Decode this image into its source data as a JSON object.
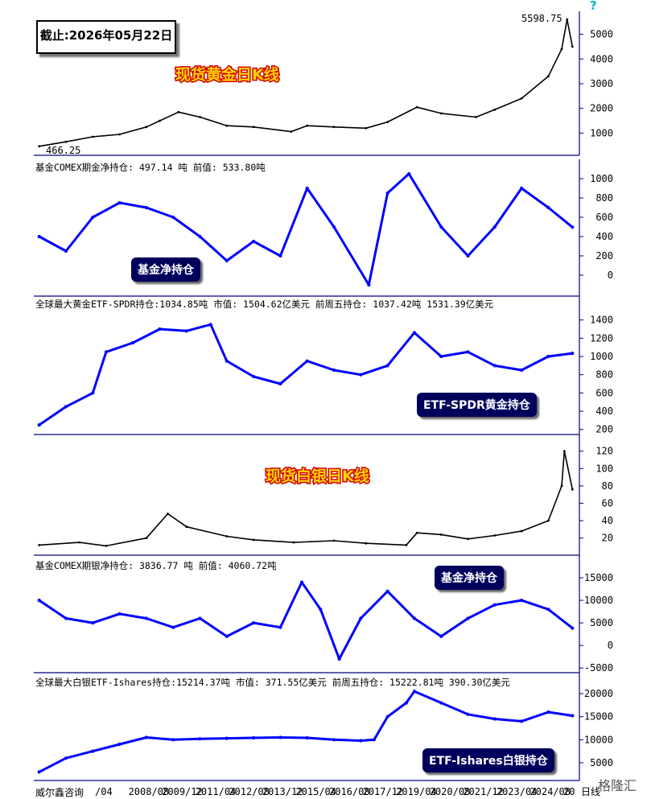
{
  "header": {
    "date_label": "截止:2026年05月22日",
    "help_icon": "question-icon"
  },
  "panels": {
    "gold_k": {
      "title": "现货黄金日K线",
      "max_label": "5598.75",
      "min_label": "466.25"
    },
    "gold_comex": {
      "info": "基金COMEX期金净持仓: 497.14 吨    前值: 533.80吨",
      "badge": "基金净持仓"
    },
    "gold_etf": {
      "info": "全球最大黄金ETF-SPDR持仓:1034.85吨    市值: 1504.62亿美元          前周五持仓: 1037.42吨   1531.39亿美元",
      "badge": "ETF-SPDR黄金持仓"
    },
    "silver_k": {
      "title": "现货白银日K线"
    },
    "silver_comex": {
      "info": "基金COMEX期银净持仓: 3836.77 吨    前值: 4060.72吨",
      "badge": "基金净持仓"
    },
    "silver_etf": {
      "info": "全球最大白银ETF-Ishares持仓:15214.37吨    市值: 371.55亿美元    前周五持仓: 15222.81吨    390.30亿美元",
      "badge": "ETF-Ishares白银持仓"
    }
  },
  "footer": {
    "source": "威尔鑫咨询",
    "x_ticks": [
      "/04",
      "2008/08",
      "2009/12",
      "2011/04",
      "2012/08",
      "2013/12",
      "2015/04",
      "2016/08",
      "2017/12",
      "2019/04",
      "2020/08",
      "2021/12",
      "2023/04",
      "2024/08",
      "20"
    ],
    "last_tick": "日线",
    "watermark": "格隆汇"
  },
  "colors": {
    "price_line": "#000000",
    "holding_line": "#0000ff",
    "badge_bg": "#00005c",
    "title_fill": "#ffd400",
    "title_stroke": "#d40000"
  },
  "chart_data": [
    {
      "type": "line",
      "name": "gold_spot_daily",
      "title": "现货黄金日K线",
      "x": [
        2006.5,
        2007.5,
        2008.5,
        2009.5,
        2010.5,
        2011.0,
        2011.7,
        2012.5,
        2013.5,
        2014.5,
        2015.9,
        2016.5,
        2017.5,
        2018.7,
        2019.5,
        2020.6,
        2021.5,
        2022.8,
        2023.5,
        2024.5,
        2025.5,
        2026.0,
        2026.2,
        2026.4
      ],
      "y": [
        466.25,
        650,
        850,
        950,
        1250,
        1500,
        1850,
        1650,
        1300,
        1250,
        1060,
        1300,
        1250,
        1200,
        1450,
        2050,
        1800,
        1650,
        1950,
        2400,
        3300,
        4400,
        5598.75,
        4500
      ],
      "yticks": [
        1000,
        2000,
        3000,
        4000,
        5000
      ],
      "ylim": [
        200,
        5800
      ]
    },
    {
      "type": "line",
      "name": "comex_gold_fund_net",
      "x": [
        2006.5,
        2007.5,
        2008.5,
        2009.5,
        2010.5,
        2011.5,
        2012.5,
        2013.5,
        2014.5,
        2015.5,
        2016.5,
        2017.5,
        2018.8,
        2019.5,
        2020.3,
        2021.5,
        2022.5,
        2023.5,
        2024.5,
        2025.5,
        2026.4
      ],
      "y": [
        400,
        250,
        600,
        750,
        700,
        600,
        400,
        150,
        350,
        200,
        900,
        500,
        -100,
        850,
        1050,
        500,
        200,
        500,
        900,
        700,
        497.14
      ],
      "yticks": [
        0,
        200,
        400,
        600,
        800,
        1000
      ],
      "ylim": [
        -150,
        1100
      ]
    },
    {
      "type": "line",
      "name": "spdr_gold_etf",
      "x": [
        2006.5,
        2007.5,
        2008.5,
        2009.0,
        2010.0,
        2011.0,
        2012.0,
        2012.9,
        2013.5,
        2014.5,
        2015.5,
        2016.5,
        2017.5,
        2018.5,
        2019.5,
        2020.5,
        2021.5,
        2022.5,
        2023.5,
        2024.5,
        2025.5,
        2026.4
      ],
      "y": [
        250,
        450,
        600,
        1050,
        1150,
        1300,
        1280,
        1350,
        950,
        780,
        700,
        950,
        850,
        800,
        900,
        1260,
        1000,
        1050,
        900,
        850,
        1000,
        1034.85
      ],
      "yticks": [
        200,
        400,
        600,
        800,
        1000,
        1200,
        1400
      ],
      "ylim": [
        180,
        1450
      ]
    },
    {
      "type": "line",
      "name": "silver_spot_daily",
      "title": "现货白银日K线",
      "x": [
        2006.5,
        2008.0,
        2009.0,
        2010.5,
        2011.3,
        2012.0,
        2013.5,
        2014.5,
        2016.0,
        2017.5,
        2018.7,
        2020.2,
        2020.6,
        2021.5,
        2022.5,
        2023.5,
        2024.5,
        2025.5,
        2026.0,
        2026.1,
        2026.4
      ],
      "y": [
        12,
        15,
        11,
        20,
        48,
        33,
        22,
        18,
        15,
        17,
        14,
        12,
        26,
        24,
        19,
        23,
        28,
        40,
        80,
        120,
        76
      ],
      "yticks": [
        20,
        40,
        60,
        80,
        100,
        120
      ],
      "ylim": [
        4,
        128
      ]
    },
    {
      "type": "line",
      "name": "comex_silver_fund_net",
      "x": [
        2006.5,
        2007.5,
        2008.5,
        2009.5,
        2010.5,
        2011.5,
        2012.5,
        2013.5,
        2014.5,
        2015.5,
        2016.3,
        2017.0,
        2017.7,
        2018.5,
        2019.5,
        2020.5,
        2021.5,
        2022.5,
        2023.5,
        2024.5,
        2025.5,
        2026.4
      ],
      "y": [
        10000,
        6000,
        5000,
        7000,
        6000,
        4000,
        6000,
        2000,
        5000,
        4000,
        14000,
        8000,
        -3000,
        6000,
        12000,
        6000,
        2000,
        6000,
        9000,
        10000,
        8000,
        3836.77
      ],
      "yticks": [
        -5000,
        0,
        5000,
        10000,
        15000
      ],
      "ylim": [
        -5500,
        17500
      ]
    },
    {
      "type": "line",
      "name": "ishares_silver_etf",
      "x": [
        2006.5,
        2007.5,
        2008.5,
        2009.5,
        2010.5,
        2011.5,
        2012.5,
        2013.5,
        2014.5,
        2015.5,
        2016.5,
        2017.5,
        2018.5,
        2019.0,
        2019.5,
        2020.2,
        2020.5,
        2021.5,
        2022.5,
        2023.5,
        2024.5,
        2025.5,
        2026.4
      ],
      "y": [
        3000,
        6000,
        7500,
        9000,
        10500,
        10000,
        10200,
        10300,
        10400,
        10500,
        10400,
        10000,
        9800,
        10000,
        15000,
        18000,
        20500,
        18000,
        15500,
        14500,
        14000,
        16000,
        15214.37
      ],
      "yticks": [
        5000,
        10000,
        15000,
        20000
      ],
      "ylim": [
        1500,
        23500
      ]
    }
  ]
}
